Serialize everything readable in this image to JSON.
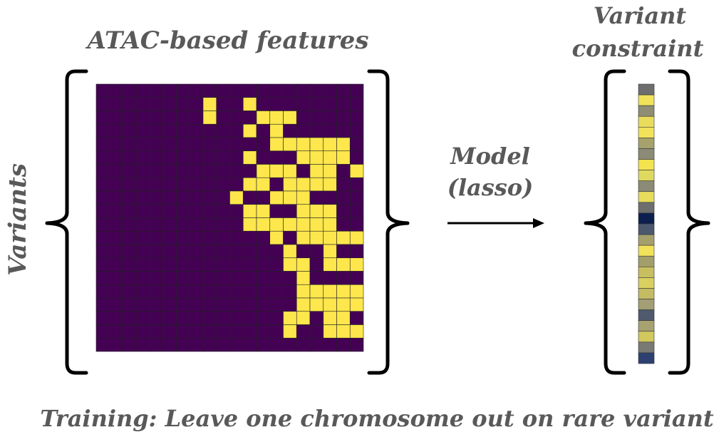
{
  "labels": {
    "features": "ATAC-based features",
    "variants": "Variants",
    "constraint_line1": "Variant",
    "constraint_line2": "constraint",
    "model_line1": "Model",
    "model_line2": "(lasso)",
    "training": "Training: Leave one chromosome out on rare variants"
  },
  "colors": {
    "matrix_off": "#440154",
    "matrix_on": "#fde74c",
    "cell_border": "#222222",
    "text": "#595959",
    "stroke": "#000000"
  },
  "matrix": [
    "00000000000000000000",
    "00000000100100000000",
    "00000000100011100000",
    "00000000000101000000",
    "00000000000001111110",
    "00000000000100011110",
    "00000000000011101101",
    "00000000000110111100",
    "00000000001001110000",
    "00000000000110011100",
    "00000000000111111100",
    "00000000000001011111",
    "00000000000000100100",
    "00000000000000110111",
    "00000000000000010000",
    "00000000000000011111",
    "00000000000000011111",
    "00000000000000110110",
    "00000000000000100111",
    "00000000000000000000"
  ],
  "constraint_colors": [
    "#6e6e6e",
    "#f1e25a",
    "#8f8e74",
    "#e9dc5c",
    "#f1e25a",
    "#a7a26c",
    "#8b8b78",
    "#f3e34e",
    "#deda60",
    "#8c8b77",
    "#e7dc5c",
    "#6e6e6e",
    "#0c1f4e",
    "#4c586e",
    "#a59f6c",
    "#f1e25a",
    "#a39f6b",
    "#c8bf60",
    "#dad060",
    "#c4bb63",
    "#a39e74",
    "#4f5a6e",
    "#a8a170",
    "#d1c85e",
    "#797a74",
    "#2c4170"
  ]
}
